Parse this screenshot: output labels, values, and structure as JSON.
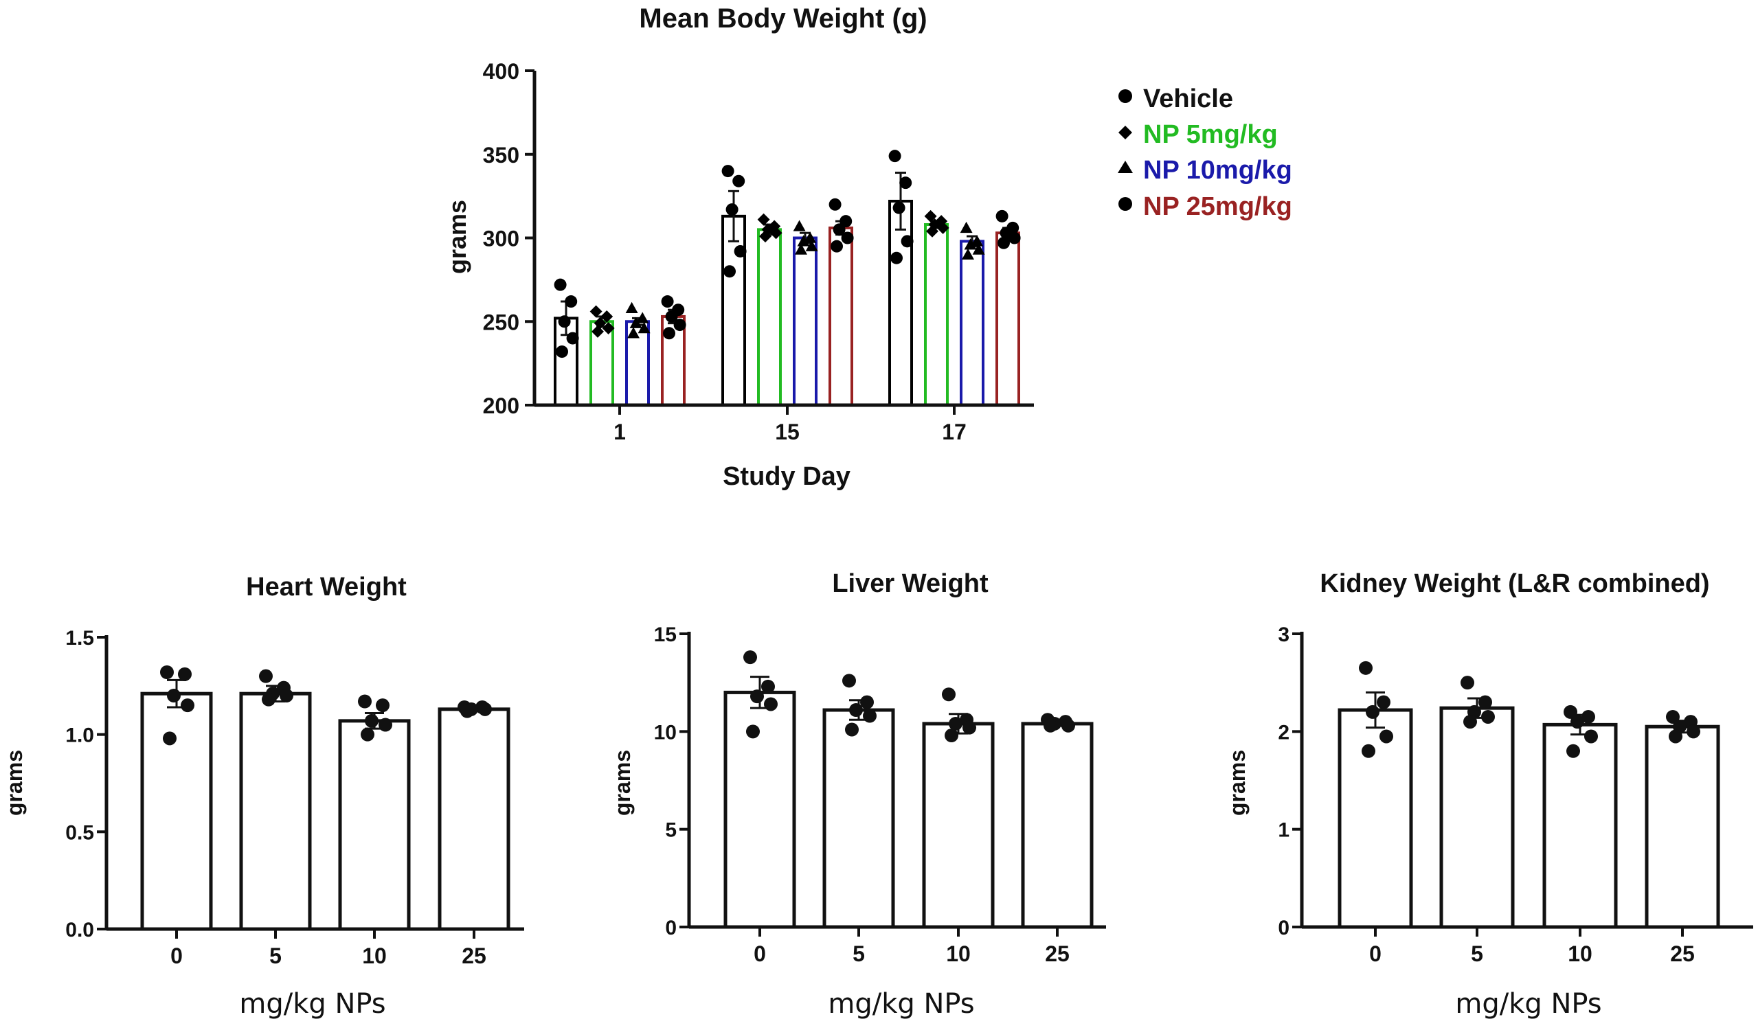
{
  "chart_data": [
    {
      "id": "body",
      "type": "bar",
      "title": "Mean Body Weight (g)",
      "xlabel": "Study Day",
      "ylabel": "grams",
      "ylim": [
        200,
        400
      ],
      "yticks": [
        200,
        250,
        300,
        350,
        400
      ],
      "categories": [
        "1",
        "15",
        "17"
      ],
      "series": [
        {
          "name": "Vehicle",
          "color": "#000000",
          "marker": "circle",
          "values": [
            252,
            313,
            322
          ],
          "errors": [
            10,
            15,
            17
          ],
          "points": [
            [
              272,
              262,
              250,
              240,
              232
            ],
            [
              340,
              334,
              317,
              292,
              280
            ],
            [
              349,
              333,
              318,
              298,
              288
            ]
          ]
        },
        {
          "name": "NP 5mg/kg",
          "color": "#22bb22",
          "marker": "diamond",
          "values": [
            250,
            305,
            308
          ],
          "errors": [
            3,
            3,
            2
          ],
          "points": [
            [
              256,
              253,
              249,
              246,
              244
            ],
            [
              311,
              307,
              305,
              303,
              301
            ],
            [
              313,
              310,
              308,
              306,
              304
            ]
          ]
        },
        {
          "name": "NP 10mg/kg",
          "color": "#1a1aaa",
          "marker": "triangle",
          "values": [
            250,
            300,
            298
          ],
          "errors": [
            2,
            3,
            3
          ],
          "points": [
            [
              258,
              252,
              249,
              246,
              243
            ],
            [
              307,
              300,
              298,
              295,
              293
            ],
            [
              306,
              298,
              296,
              293,
              290
            ]
          ]
        },
        {
          "name": "NP 25mg/kg",
          "color": "#992222",
          "marker": "circle",
          "values": [
            253,
            306,
            303
          ],
          "errors": [
            4,
            4,
            3
          ],
          "points": [
            [
              262,
              257,
              253,
              248,
              243
            ],
            [
              320,
              310,
              305,
              300,
              295
            ],
            [
              313,
              306,
              303,
              300,
              297
            ]
          ]
        }
      ],
      "legend_position": "top-right"
    },
    {
      "id": "heart",
      "type": "bar",
      "title": "Heart Weight",
      "xlabel": "mg/kg NPs",
      "ylabel": "grams",
      "ylim": [
        0,
        1.5
      ],
      "ytick_labels": [
        "0.0",
        "0.5",
        "1.0",
        "1.5"
      ],
      "categories": [
        "0",
        "5",
        "10",
        "25"
      ],
      "values": [
        1.21,
        1.21,
        1.07,
        1.13
      ],
      "errors": [
        0.07,
        0.04,
        0.04,
        0.01
      ],
      "points": [
        [
          1.32,
          1.31,
          1.2,
          1.15,
          0.98
        ],
        [
          1.3,
          1.24,
          1.21,
          1.2,
          1.18
        ],
        [
          1.17,
          1.15,
          1.07,
          1.05,
          1.0
        ],
        [
          1.14,
          1.14,
          1.13,
          1.13,
          1.12
        ]
      ]
    },
    {
      "id": "liver",
      "type": "bar",
      "title": "Liver Weight",
      "xlabel": "mg/kg NPs",
      "ylabel": "grams",
      "ylim": [
        0,
        15
      ],
      "ytick_labels": [
        "0",
        "5",
        "10",
        "15"
      ],
      "categories": [
        "0",
        "5",
        "10",
        "25"
      ],
      "values": [
        12.0,
        11.1,
        10.4,
        10.4
      ],
      "errors": [
        0.8,
        0.5,
        0.5,
        0.1
      ],
      "points": [
        [
          13.8,
          12.3,
          11.8,
          11.4,
          10.0
        ],
        [
          12.6,
          11.5,
          11.1,
          10.8,
          10.1
        ],
        [
          11.9,
          10.6,
          10.4,
          10.2,
          9.8
        ],
        [
          10.6,
          10.5,
          10.4,
          10.3,
          10.3
        ]
      ]
    },
    {
      "id": "kidney",
      "type": "bar",
      "title": "Kidney Weight (L&R combined)",
      "xlabel": "mg/kg NPs",
      "ylabel": "grams",
      "ylim": [
        0,
        3
      ],
      "ytick_labels": [
        "0",
        "1",
        "2",
        "3"
      ],
      "categories": [
        "0",
        "5",
        "10",
        "25"
      ],
      "values": [
        2.22,
        2.24,
        2.07,
        2.05
      ],
      "errors": [
        0.18,
        0.1,
        0.1,
        0.06
      ],
      "points": [
        [
          2.65,
          2.3,
          2.2,
          1.95,
          1.8
        ],
        [
          2.5,
          2.3,
          2.2,
          2.15,
          2.1
        ],
        [
          2.2,
          2.15,
          2.1,
          1.95,
          1.8
        ],
        [
          2.15,
          2.1,
          2.05,
          2.0,
          1.95
        ]
      ]
    }
  ]
}
